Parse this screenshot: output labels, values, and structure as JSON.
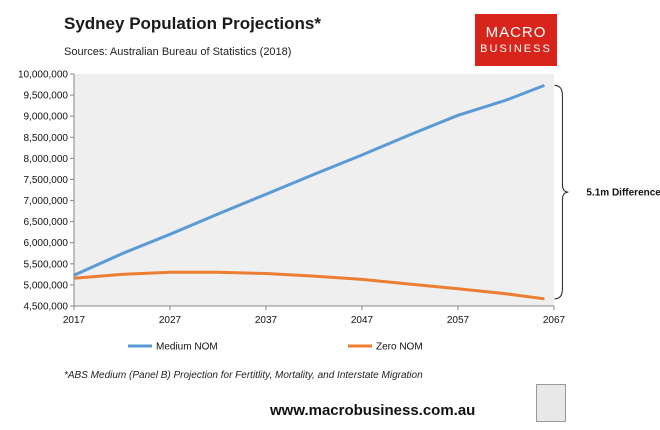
{
  "header": {
    "title": "Sydney Population Projections*",
    "subtitle": "Sources: Australian Bureau of Statistics (2018)"
  },
  "logo": {
    "line1": "MACRO",
    "line2": "BUSINESS"
  },
  "annotation": "5.1m Difference",
  "footnote": "*ABS Medium (Panel B) Projection for Fertitlity, Mortality, and Interstate Migration",
  "website": "www.macrobusiness.com.au",
  "colors": {
    "medium": "#5b9bd5",
    "zero": "#ed7d31",
    "plot_bg": "#efefef",
    "logo": "#d9241b"
  },
  "chart_data": {
    "type": "line",
    "xlim": [
      2017,
      2067
    ],
    "ylim": [
      4500000,
      10000000
    ],
    "x_ticks": [
      2017,
      2027,
      2037,
      2047,
      2057,
      2067
    ],
    "y_ticks": [
      4500000,
      5000000,
      5500000,
      6000000,
      6500000,
      7000000,
      7500000,
      8000000,
      8500000,
      9000000,
      9500000,
      10000000
    ],
    "y_tick_labels": [
      "4,500,000",
      "5,000,000",
      "5,500,000",
      "6,000,000",
      "6,500,000",
      "7,000,000",
      "7,500,000",
      "8,000,000",
      "8,500,000",
      "9,000,000",
      "9,500,000",
      "10,000,000"
    ],
    "grid": false,
    "legend_position": "bottom",
    "series": [
      {
        "name": "Medium NOM",
        "x": [
          2017,
          2022,
          2027,
          2032,
          2037,
          2042,
          2047,
          2052,
          2057,
          2062,
          2066
        ],
        "values": [
          5230000,
          5740000,
          6200000,
          6680000,
          7150000,
          7620000,
          8080000,
          8560000,
          9020000,
          9380000,
          9730000
        ]
      },
      {
        "name": "Zero NOM",
        "x": [
          2017,
          2022,
          2027,
          2032,
          2037,
          2042,
          2047,
          2052,
          2057,
          2062,
          2066
        ],
        "values": [
          5160000,
          5250000,
          5300000,
          5300000,
          5270000,
          5210000,
          5130000,
          5020000,
          4910000,
          4790000,
          4670000
        ]
      }
    ]
  }
}
